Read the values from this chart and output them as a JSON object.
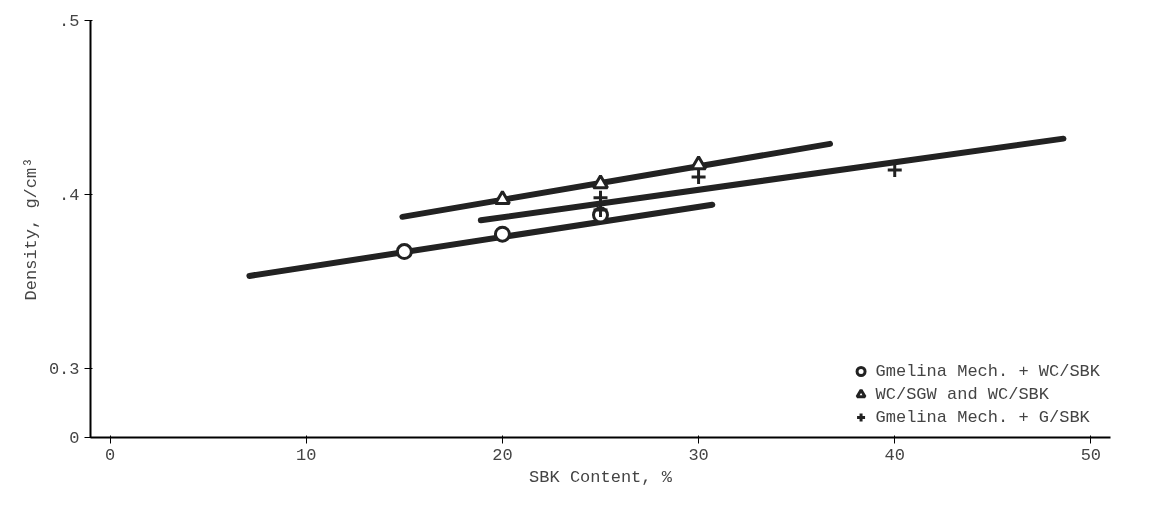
{
  "chart_data": {
    "type": "scatter",
    "xlabel": "SBK Content, %",
    "ylabel": "Density, g/cm³",
    "xlim": [
      -1,
      51
    ],
    "xticks": [
      0,
      10,
      20,
      30,
      40,
      50
    ],
    "ylim": [
      0.26,
      0.5
    ],
    "yticks": [
      {
        "value": 0.26,
        "label": "0"
      },
      {
        "value": 0.3,
        "label": "0.3"
      },
      {
        "value": 0.4,
        "label": ".4"
      },
      {
        "value": 0.5,
        "label": ".5"
      }
    ],
    "grid": false,
    "legend": "bottom right",
    "series": [
      {
        "type": "line",
        "color": "#222222",
        "x": [
          7.1,
          30.7
        ],
        "values": [
          0.353,
          0.394
        ]
      },
      {
        "type": "line",
        "color": "#222222",
        "x": [
          14.9,
          36.7
        ],
        "values": [
          0.387,
          0.429
        ]
      },
      {
        "type": "line",
        "color": "#222222",
        "x": [
          18.9,
          48.6
        ],
        "values": [
          0.385,
          0.432
        ]
      },
      {
        "name": "Gmelina Mech. + WC/SBK",
        "color": "#222222",
        "marker": "circle",
        "x": [
          15,
          20,
          25
        ],
        "values": [
          0.367,
          0.377,
          0.388
        ]
      },
      {
        "name": "WC/SGW and WC/SBK",
        "color": "#222222",
        "marker": "triangle",
        "x": [
          20,
          25,
          30
        ],
        "values": [
          0.397,
          0.406,
          0.417
        ]
      },
      {
        "name": "Gmelina Mech. + G/SBK",
        "color": "#222222",
        "marker": "cross",
        "x": [
          25,
          25,
          30,
          40
        ],
        "values": [
          0.391,
          0.398,
          0.41,
          0.414
        ]
      }
    ]
  }
}
